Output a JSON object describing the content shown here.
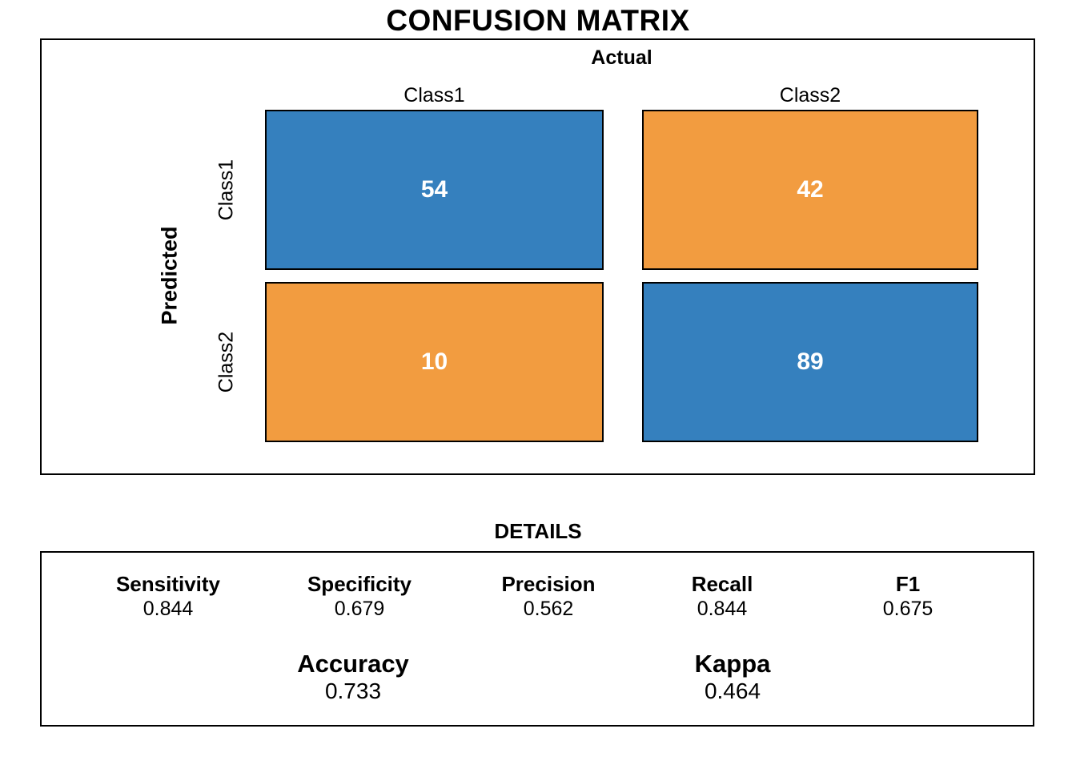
{
  "title": "CONFUSION MATRIX",
  "colors": {
    "true_cell": "#3580BE",
    "false_cell": "#F29C40",
    "cell_text": "#FFFFFF",
    "border": "#000000",
    "background": "#FFFFFF"
  },
  "matrix": {
    "top_axis_title": "Actual",
    "left_axis_title": "Predicted",
    "columns": [
      "Class1",
      "Class2"
    ],
    "rows": [
      "Class1",
      "Class2"
    ],
    "values": [
      [
        "54",
        "42"
      ],
      [
        "10",
        "89"
      ]
    ],
    "cell_colors": [
      [
        "#3580BE",
        "#F29C40"
      ],
      [
        "#F29C40",
        "#3580BE"
      ]
    ]
  },
  "details": {
    "title": "DETAILS",
    "metrics": [
      {
        "label": "Sensitivity",
        "value": "0.844"
      },
      {
        "label": "Specificity",
        "value": "0.679"
      },
      {
        "label": "Precision",
        "value": "0.562"
      },
      {
        "label": "Recall",
        "value": "0.844"
      },
      {
        "label": "F1",
        "value": "0.675"
      }
    ],
    "summary": [
      {
        "label": "Accuracy",
        "value": "0.733"
      },
      {
        "label": "Kappa",
        "value": "0.464"
      }
    ]
  },
  "chart_data": {
    "type": "heatmap",
    "title": "CONFUSION MATRIX",
    "x_axis_label": "Actual",
    "y_axis_label": "Predicted",
    "x_categories": [
      "Class1",
      "Class2"
    ],
    "y_categories": [
      "Class1",
      "Class2"
    ],
    "values": [
      [
        54,
        42
      ],
      [
        10,
        89
      ]
    ],
    "cell_colors": [
      [
        "#3580BE",
        "#F29C40"
      ],
      [
        "#F29C40",
        "#3580BE"
      ]
    ],
    "legend": "none",
    "grid": false,
    "stats": {
      "Sensitivity": 0.844,
      "Specificity": 0.679,
      "Precision": 0.562,
      "Recall": 0.844,
      "F1": 0.675,
      "Accuracy": 0.733,
      "Kappa": 0.464
    }
  }
}
